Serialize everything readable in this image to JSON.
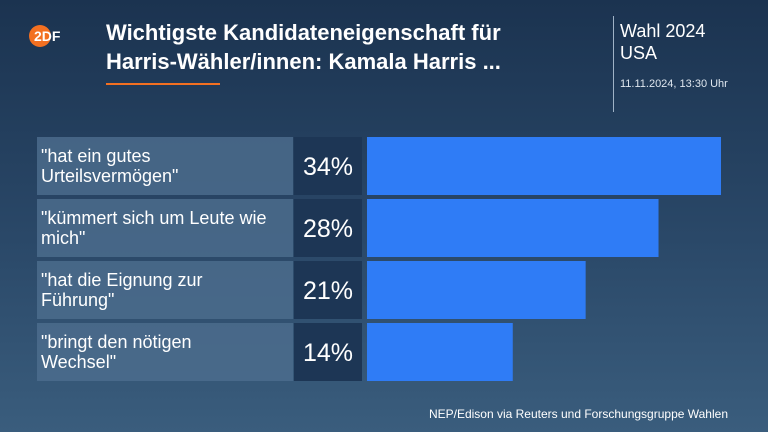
{
  "logo": {
    "text": "2DF",
    "color": "#f37021"
  },
  "header": {
    "title_line1": "Wichtigste Kandidateneigenschaft für",
    "title_line2": "Harris-Wähler/innen: Kamala Harris ...",
    "brand_line1": "Wahl 2024",
    "brand_line2": "USA",
    "timestamp": "11.11.2024, 13:30 Uhr"
  },
  "colors": {
    "bar": "#2f7cf6",
    "label_bg": "#4e6e8e",
    "value_bg": "#1d3655",
    "accent": "#f37021"
  },
  "chart_data": {
    "type": "bar",
    "orientation": "horizontal",
    "categories": [
      [
        "\"hat ein gutes",
        "Urteilsvermögen\""
      ],
      [
        "\"kümmert sich um Leute wie",
        "mich\""
      ],
      [
        "\"hat die Eignung zur",
        "Führung\""
      ],
      [
        "\"bringt den nötigen",
        "Wechsel\""
      ]
    ],
    "values": [
      34,
      28,
      21,
      14
    ],
    "value_labels": [
      "34%",
      "28%",
      "21%",
      "14%"
    ],
    "xlim": [
      0,
      34
    ]
  },
  "footer": {
    "source": "NEP/Edison via Reuters und Forschungsgruppe Wahlen"
  }
}
